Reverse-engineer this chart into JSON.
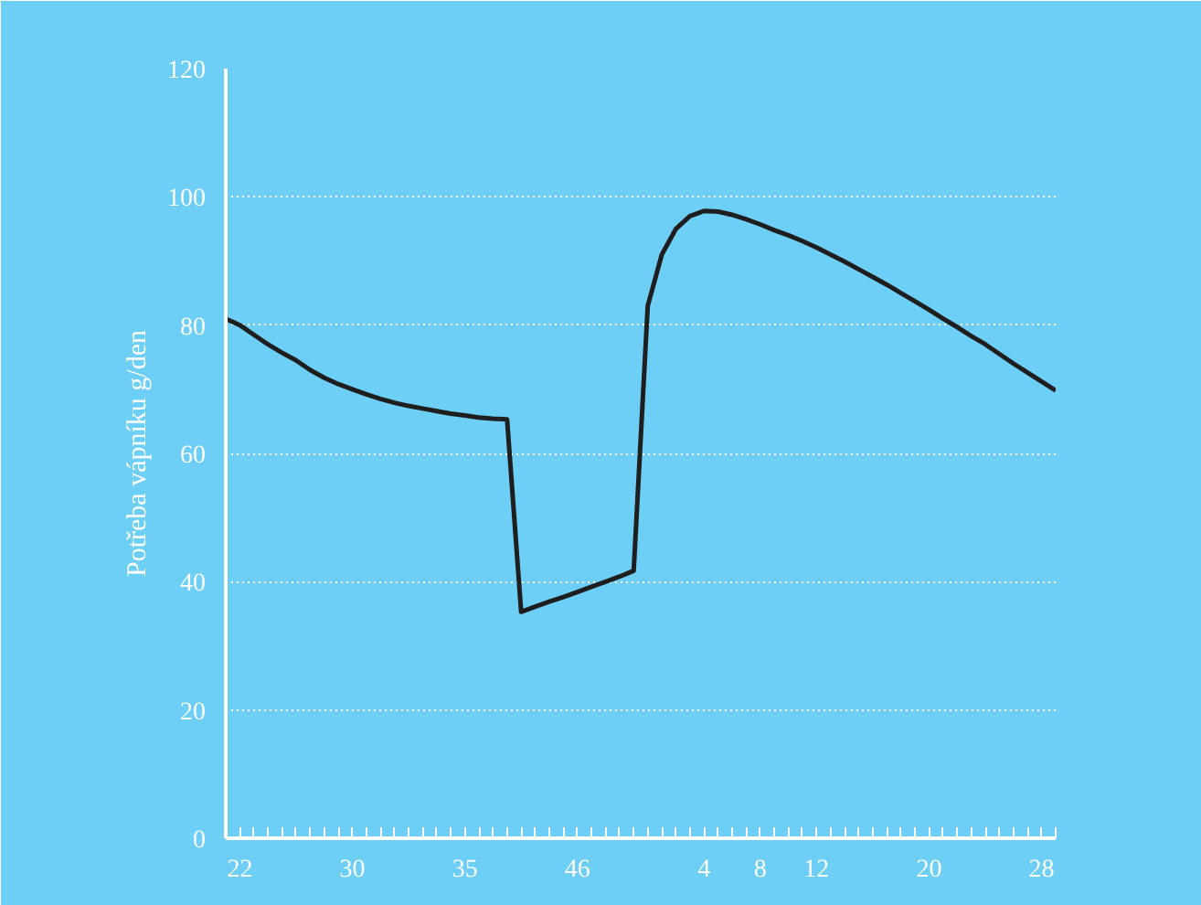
{
  "chart_data": {
    "type": "line",
    "ylabel": "Potřeba vápníku g/den",
    "categories": [
      null,
      "22",
      null,
      null,
      null,
      null,
      null,
      null,
      null,
      "30",
      null,
      null,
      null,
      null,
      null,
      null,
      null,
      "35",
      null,
      null,
      null,
      null,
      null,
      null,
      null,
      "46",
      null,
      null,
      null,
      null,
      null,
      null,
      null,
      null,
      "4",
      null,
      null,
      null,
      "8",
      null,
      null,
      null,
      "12",
      null,
      null,
      null,
      null,
      null,
      null,
      null,
      "20",
      null,
      null,
      null,
      null,
      null,
      null,
      null,
      "28",
      null
    ],
    "series": [
      {
        "color": "#1e1e1e",
        "values": [
          81,
          80,
          78.5,
          77,
          75.7,
          74.5,
          73,
          71.8,
          70.8,
          70,
          69.2,
          68.5,
          67.9,
          67.4,
          67,
          66.6,
          66.2,
          65.9,
          65.6,
          65.4,
          65.3,
          35.3,
          36.1,
          36.9,
          37.6,
          38.4,
          39.2,
          40,
          40.8,
          41.7,
          83,
          91,
          95,
          97,
          97.8,
          97.7,
          97.2,
          96.5,
          95.7,
          94.8,
          94,
          93.1,
          92.1,
          91,
          89.9,
          88.7,
          87.5,
          86.3,
          85,
          83.7,
          82.4,
          81,
          79.7,
          78.3,
          77,
          75.5,
          74,
          72.6,
          71.2,
          69.8
        ]
      }
    ],
    "ylim": [
      0,
      120
    ],
    "yticks": [
      0,
      20,
      40,
      60,
      80,
      100,
      120
    ],
    "grid": "y",
    "marker": "none",
    "line_style": "solid"
  }
}
